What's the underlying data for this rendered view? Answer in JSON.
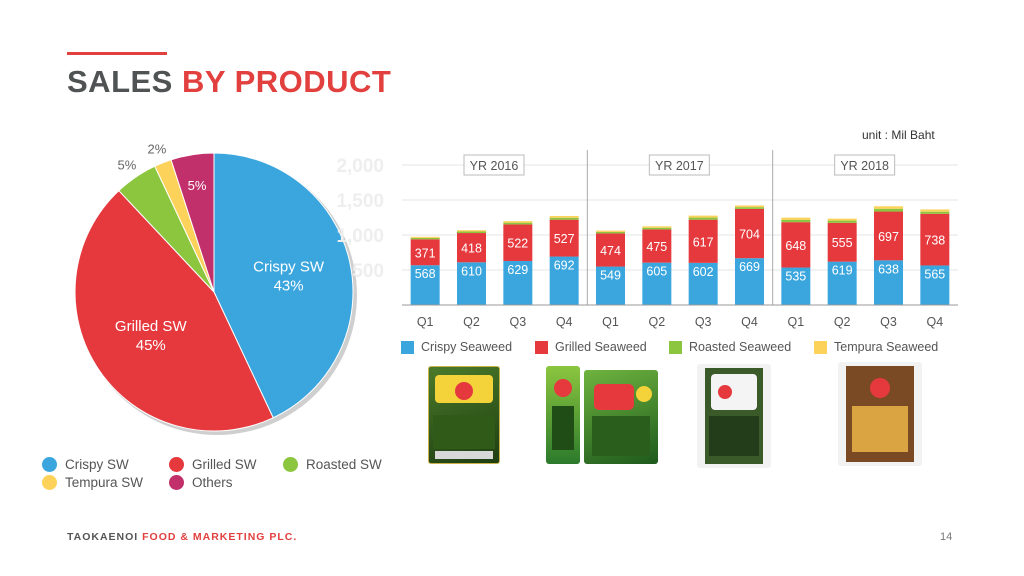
{
  "slide": {
    "title_part1": "SALES ",
    "title_part2": "BY PRODUCT",
    "unit": "unit : Mil Baht",
    "footer_part1": "TAOKAENOI ",
    "footer_part2": "FOOD & MARKETING PLC.",
    "page_number": "14"
  },
  "colors": {
    "accent": "#e2403f",
    "crispy": "#3ba6de",
    "grilled": "#e5393e",
    "roasted": "#8cc63f",
    "tempura": "#fcd25a",
    "others": "#c2306b"
  },
  "chart_data": [
    {
      "type": "pie",
      "slices": [
        {
          "label": "Crispy SW",
          "value": 43,
          "text": "Crispy SW",
          "pct": "43%",
          "color": "#3ba6de"
        },
        {
          "label": "Grilled SW",
          "value": 45,
          "text": "Grilled SW",
          "pct": "45%",
          "color": "#e5393e"
        },
        {
          "label": "Roasted SW",
          "value": 5,
          "text": "",
          "pct": "5%",
          "color": "#8cc63f"
        },
        {
          "label": "Tempura SW",
          "value": 2,
          "text": "",
          "pct": "2%",
          "color": "#fcd25a"
        },
        {
          "label": "Others",
          "value": 5,
          "text": "",
          "pct": "5%",
          "color": "#c2306b"
        }
      ],
      "legend": [
        "Crispy SW",
        "Grilled SW",
        "Roasted SW",
        "Tempura SW",
        "Others"
      ]
    },
    {
      "type": "bar",
      "stacked": true,
      "unit": "unit : Mil Baht",
      "groups": [
        "YR 2016",
        "YR 2017",
        "YR 2018"
      ],
      "categories": [
        "Q1",
        "Q2",
        "Q3",
        "Q4",
        "Q1",
        "Q2",
        "Q3",
        "Q4",
        "Q1",
        "Q2",
        "Q3",
        "Q4"
      ],
      "y_ticks": [
        "500",
        "1,000",
        "1,500",
        "2,000"
      ],
      "ylim": [
        0,
        2000
      ],
      "series": [
        {
          "name": "Crispy Seaweed",
          "color": "#3ba6de",
          "values": [
            568,
            610,
            629,
            692,
            549,
            605,
            602,
            669,
            535,
            619,
            638,
            565
          ]
        },
        {
          "name": "Grilled Seaweed",
          "color": "#e5393e",
          "values": [
            371,
            418,
            522,
            527,
            474,
            475,
            617,
            704,
            648,
            555,
            697,
            738
          ]
        },
        {
          "name": "Roasted Seaweed",
          "color": "#8cc63f",
          "values": [
            20,
            22,
            25,
            28,
            22,
            24,
            30,
            25,
            35,
            32,
            40,
            30
          ]
        },
        {
          "name": "Tempura Seaweed",
          "color": "#fcd25a",
          "values": [
            15,
            18,
            22,
            25,
            18,
            20,
            28,
            24,
            30,
            28,
            35,
            32
          ]
        }
      ]
    }
  ]
}
